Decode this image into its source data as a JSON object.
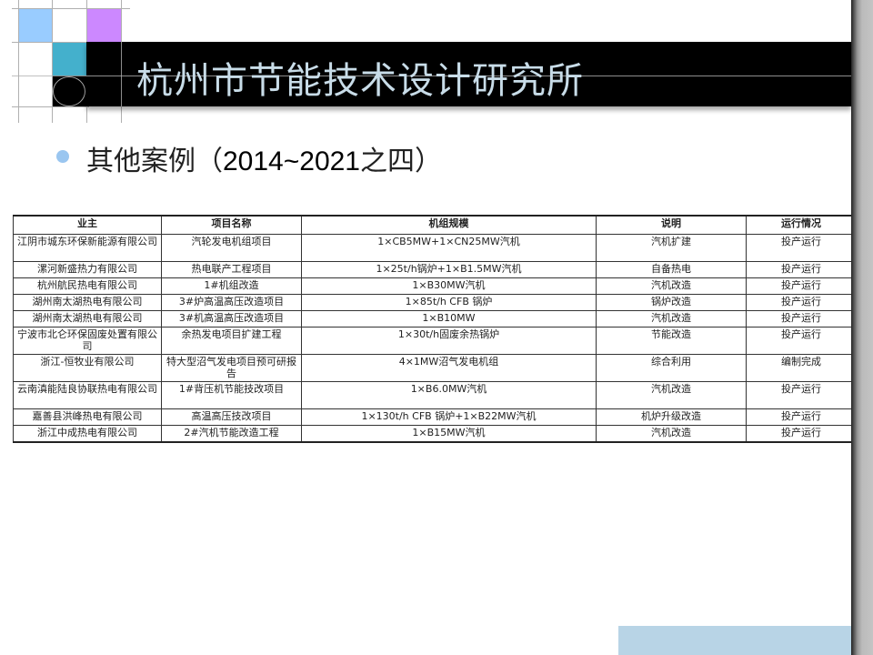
{
  "header": {
    "title": "杭州市节能技术设计研究所"
  },
  "subtitle": {
    "text": "其他案例（",
    "years": "2014~2021",
    "suffix": "之四）"
  },
  "colors": {
    "banner": "#000000",
    "title": "#c8dce8",
    "square_blue": "#99ccff",
    "square_purple": "#cc88ff",
    "square_teal": "#44b0cc",
    "bullet": "#9ac6f0",
    "bottom_block": "#b8d4e6"
  },
  "table": {
    "columns": [
      "业主",
      "项目名称",
      "机组规模",
      "说明",
      "运行情况"
    ],
    "rows": [
      [
        "江阴市城东环保新能源有限公司",
        "汽轮发电机组项目",
        "1×CB5MW+1×CN25MW汽机",
        "汽机扩建",
        "投产运行"
      ],
      [
        "漯河新盛热力有限公司",
        "热电联产工程项目",
        "1×25t/h锅炉+1×B1.5MW汽机",
        "自备热电",
        "投产运行"
      ],
      [
        "杭州航民热电有限公司",
        "1#机组改造",
        "1×B30MW汽机",
        "汽机改造",
        "投产运行"
      ],
      [
        "湖州南太湖热电有限公司",
        "3#炉高温高压改造项目",
        "1×85t/h CFB 锅炉",
        "锅炉改造",
        "投产运行"
      ],
      [
        "湖州南太湖热电有限公司",
        "3#机高温高压改造项目",
        "1×B10MW",
        "汽机改造",
        "投产运行"
      ],
      [
        "宁波市北仑环保固废处置有限公司",
        "余热发电项目扩建工程",
        "1×30t/h固废余热锅炉",
        "节能改造",
        "投产运行"
      ],
      [
        "浙江-恒牧业有限公司",
        "特大型沼气发电项目预可研报告",
        "4×1MW沼气发电机组",
        "综合利用",
        "编制完成"
      ],
      [
        "云南滇能陆良协联热电有限公司",
        "1#背压机节能技改项目",
        "1×B6.0MW汽机",
        "汽机改造",
        "投产运行"
      ],
      [
        "嘉善县洪峰热电有限公司",
        "高温高压技改项目",
        "1×130t/h CFB 锅炉+1×B22MW汽机",
        "机炉升级改造",
        "投产运行"
      ],
      [
        "浙江中成热电有限公司",
        "2#汽机节能改造工程",
        "1×B15MW汽机",
        "汽机改造",
        "投产运行"
      ]
    ]
  }
}
